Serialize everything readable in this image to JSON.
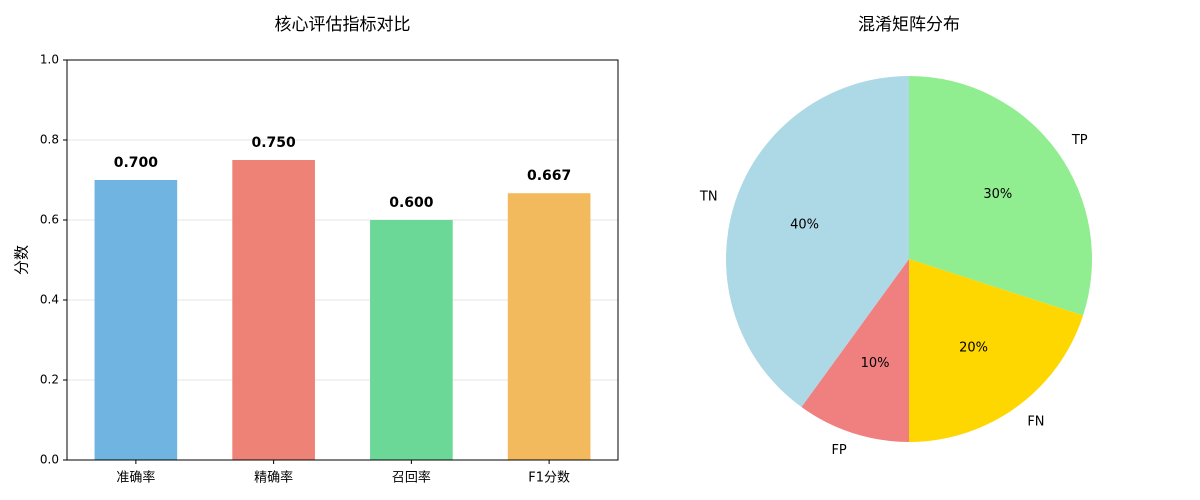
{
  "chart_data": [
    {
      "type": "bar",
      "title": "核心评估指标对比",
      "y_label": "分数",
      "categories": [
        "准确率",
        "精确率",
        "召回率",
        "F1分数"
      ],
      "values": [
        0.7,
        0.75,
        0.6,
        0.667
      ],
      "value_labels": [
        "0.700",
        "0.750",
        "0.600",
        "0.667"
      ],
      "colors": [
        "#70b4e2",
        "#ef8276",
        "#6cd898",
        "#f3b95d"
      ],
      "ylim": [
        0,
        1
      ],
      "yticks": [
        {
          "value": 0,
          "label": "0.0"
        },
        0.2,
        0.4,
        0.6,
        0.8,
        {
          "value": 1,
          "label": "1.0"
        }
      ],
      "grid": true
    },
    {
      "type": "pie",
      "title": "混淆矩阵分布",
      "categories": [
        "TP",
        "FN",
        "FP",
        "TN"
      ],
      "values": [
        30,
        20,
        10,
        40
      ],
      "value_labels": [
        "30%",
        "20%",
        "10%",
        "40%"
      ],
      "colors": [
        "#90ee90",
        "#ffd700",
        "#f08080",
        "#add8e6"
      ]
    }
  ]
}
